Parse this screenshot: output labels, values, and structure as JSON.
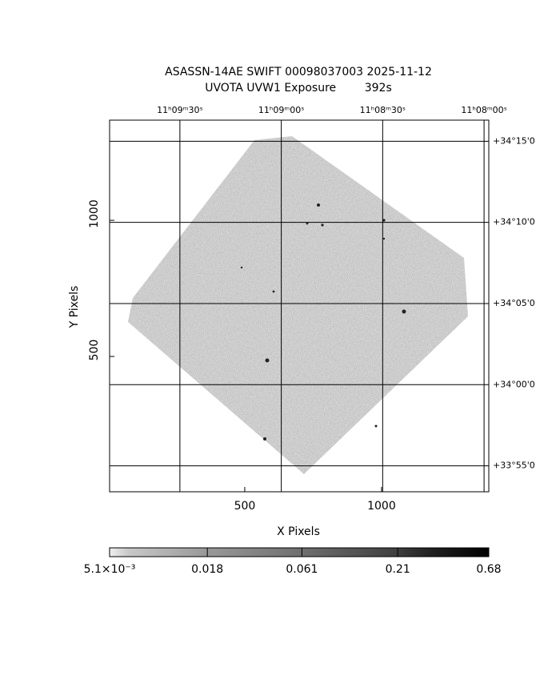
{
  "chart_data": {
    "type": "image",
    "title": "ASASSN-14AE SWIFT 00098037003 2025-11-12",
    "subtitle": "UVOTA UVW1 Exposure        392s",
    "xlabel": "X Pixels",
    "ylabel": "Y Pixels",
    "xlim": [
      6,
      1392
    ],
    "ylim": [
      3,
      1368
    ],
    "xticks": [
      500,
      1000
    ],
    "yticks": [
      500,
      1000
    ],
    "x2lim": [
      40190.8,
      40078.6
    ],
    "x2ticks": [
      {
        "value": 40170,
        "label": "11ʰ09ᵐ30ˢ"
      },
      {
        "value": 40140,
        "label": "11ʰ09ᵐ00ˢ"
      },
      {
        "value": 40110,
        "label": "11ʰ08ᵐ30ˢ"
      },
      {
        "value": 40080,
        "label": "11ʰ08ᵐ00ˢ"
      }
    ],
    "y2lim": [
      2033.4,
      2056.3
    ],
    "y2ticks": [
      {
        "value": 2055,
        "label": "+34°15'0"
      },
      {
        "value": 2050,
        "label": "+34°10'0"
      },
      {
        "value": 2045,
        "label": "+34°05'0"
      },
      {
        "value": 2040,
        "label": "+34°00'0"
      },
      {
        "value": 2035,
        "label": "+33°55'0"
      }
    ],
    "grid": true,
    "colorbar": {
      "log": true,
      "clim": [
        0.0051,
        0.68
      ],
      "ticks": [
        {
          "value": 0.0051,
          "label": "5.1×10⁻³"
        },
        0.018,
        0.061,
        0.21,
        0.68
      ]
    }
  }
}
